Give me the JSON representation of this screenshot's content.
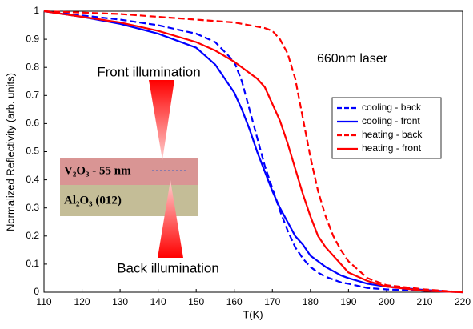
{
  "chart_data": {
    "type": "line",
    "x_label": "T(K)",
    "y_label": "Normalized Reflectivity (arb. units)",
    "x": [
      110,
      120,
      130,
      140,
      150,
      155,
      160,
      162,
      164,
      166,
      168,
      170,
      172,
      174,
      176,
      178,
      180,
      182,
      184,
      186,
      188,
      190,
      195,
      200,
      210,
      220
    ],
    "series": [
      {
        "name": "cooling - back",
        "color": "#0000ff",
        "dash": true,
        "values": [
          1,
          0.985,
          0.97,
          0.95,
          0.92,
          0.89,
          0.82,
          0.75,
          0.65,
          0.55,
          0.45,
          0.37,
          0.29,
          0.22,
          0.16,
          0.12,
          0.09,
          0.07,
          0.055,
          0.045,
          0.035,
          0.03,
          0.015,
          0.01,
          0.005,
          0
        ]
      },
      {
        "name": "cooling - front",
        "color": "#0000ff",
        "dash": false,
        "values": [
          1,
          0.98,
          0.955,
          0.92,
          0.87,
          0.81,
          0.71,
          0.65,
          0.58,
          0.5,
          0.43,
          0.36,
          0.3,
          0.25,
          0.2,
          0.17,
          0.13,
          0.11,
          0.09,
          0.075,
          0.06,
          0.05,
          0.03,
          0.02,
          0.008,
          0
        ]
      },
      {
        "name": "heating - back",
        "color": "#ff0000",
        "dash": true,
        "values": [
          1,
          0.995,
          0.99,
          0.98,
          0.97,
          0.965,
          0.96,
          0.955,
          0.95,
          0.945,
          0.94,
          0.93,
          0.9,
          0.85,
          0.76,
          0.62,
          0.48,
          0.36,
          0.27,
          0.2,
          0.15,
          0.11,
          0.05,
          0.025,
          0.01,
          0
        ]
      },
      {
        "name": "heating - front",
        "color": "#ff0000",
        "dash": false,
        "values": [
          1,
          0.98,
          0.96,
          0.93,
          0.89,
          0.86,
          0.82,
          0.8,
          0.78,
          0.76,
          0.73,
          0.67,
          0.61,
          0.53,
          0.44,
          0.35,
          0.27,
          0.2,
          0.16,
          0.13,
          0.1,
          0.07,
          0.04,
          0.02,
          0.005,
          0
        ]
      }
    ],
    "xlim": [
      110,
      220
    ],
    "ylim": [
      0,
      1
    ],
    "xticks": [
      110,
      120,
      130,
      140,
      150,
      160,
      170,
      180,
      190,
      200,
      210,
      220
    ],
    "yticks": [
      0,
      0.1,
      0.2,
      0.3,
      0.4,
      0.5,
      0.6,
      0.7,
      0.8,
      0.9,
      1
    ],
    "grid": false,
    "legend": "right",
    "annotations": {
      "laser": "660nm laser",
      "front": "Front illumination",
      "back": "Back illumination",
      "film": "V₂O₃ - 55 nm",
      "substrate": "Al₂O₃ (012)"
    }
  }
}
